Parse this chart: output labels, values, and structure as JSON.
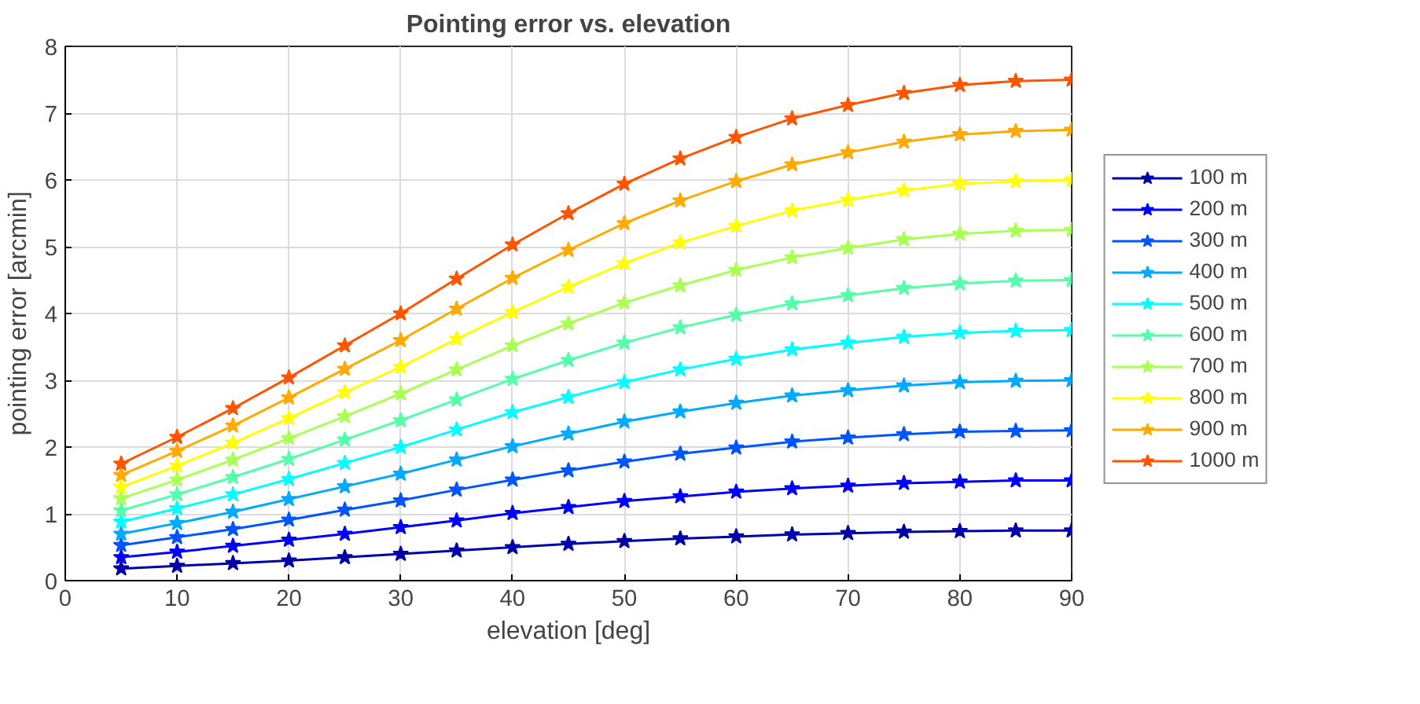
{
  "chart_data": {
    "type": "line",
    "title": "Pointing error vs. elevation",
    "xlabel": "elevation [deg]",
    "ylabel": "pointing error [arcmin]",
    "x": [
      5,
      10,
      15,
      20,
      25,
      30,
      35,
      40,
      45,
      50,
      55,
      60,
      65,
      70,
      75,
      80,
      85,
      90
    ],
    "xlim": [
      0,
      90
    ],
    "xticks": [
      0,
      10,
      20,
      30,
      40,
      50,
      60,
      70,
      80,
      90
    ],
    "ylim": [
      0,
      8
    ],
    "yticks": [
      0,
      1,
      2,
      3,
      4,
      5,
      6,
      7,
      8
    ],
    "grid": true,
    "legend": "right",
    "marker": "star",
    "line_style": "solid",
    "series": [
      {
        "name": "100 m",
        "color": "#0000a8",
        "values": [
          0.18,
          0.22,
          0.26,
          0.3,
          0.35,
          0.4,
          0.45,
          0.5,
          0.55,
          0.59,
          0.63,
          0.66,
          0.69,
          0.71,
          0.73,
          0.74,
          0.75,
          0.75
        ]
      },
      {
        "name": "200 m",
        "color": "#0000ff",
        "values": [
          0.35,
          0.43,
          0.52,
          0.61,
          0.7,
          0.8,
          0.9,
          1.01,
          1.1,
          1.19,
          1.26,
          1.33,
          1.38,
          1.42,
          1.46,
          1.48,
          1.5,
          1.5
        ]
      },
      {
        "name": "300 m",
        "color": "#0055ff",
        "values": [
          0.53,
          0.65,
          0.77,
          0.91,
          1.06,
          1.2,
          1.36,
          1.51,
          1.65,
          1.78,
          1.9,
          1.99,
          2.08,
          2.14,
          2.19,
          2.23,
          2.24,
          2.25
        ]
      },
      {
        "name": "400 m",
        "color": "#00aaff",
        "values": [
          0.7,
          0.86,
          1.03,
          1.22,
          1.41,
          1.6,
          1.81,
          2.01,
          2.2,
          2.38,
          2.53,
          2.66,
          2.77,
          2.85,
          2.92,
          2.97,
          2.99,
          3.0
        ]
      },
      {
        "name": "500 m",
        "color": "#00ffff",
        "values": [
          0.88,
          1.08,
          1.29,
          1.52,
          1.76,
          2.0,
          2.26,
          2.52,
          2.75,
          2.97,
          3.16,
          3.32,
          3.46,
          3.56,
          3.65,
          3.71,
          3.74,
          3.75
        ]
      },
      {
        "name": "600 m",
        "color": "#55ffaa",
        "values": [
          1.05,
          1.29,
          1.55,
          1.82,
          2.11,
          2.4,
          2.71,
          3.02,
          3.3,
          3.56,
          3.79,
          3.98,
          4.15,
          4.27,
          4.38,
          4.45,
          4.49,
          4.5
        ]
      },
      {
        "name": "700 m",
        "color": "#aaff55",
        "values": [
          1.23,
          1.51,
          1.81,
          2.13,
          2.46,
          2.8,
          3.16,
          3.52,
          3.85,
          4.16,
          4.42,
          4.65,
          4.84,
          4.98,
          5.11,
          5.19,
          5.24,
          5.25
        ]
      },
      {
        "name": "800 m",
        "color": "#ffff00",
        "values": [
          1.4,
          1.72,
          2.06,
          2.43,
          2.82,
          3.2,
          3.62,
          4.02,
          4.4,
          4.75,
          5.06,
          5.31,
          5.54,
          5.7,
          5.84,
          5.94,
          5.98,
          6.0
        ]
      },
      {
        "name": "900 m",
        "color": "#ffaa00",
        "values": [
          1.58,
          1.94,
          2.32,
          2.74,
          3.17,
          3.6,
          4.07,
          4.53,
          4.95,
          5.35,
          5.69,
          5.98,
          6.23,
          6.41,
          6.57,
          6.68,
          6.73,
          6.75
        ]
      },
      {
        "name": "1000 m",
        "color": "#ff5500",
        "values": [
          1.75,
          2.15,
          2.58,
          3.04,
          3.52,
          4.0,
          4.52,
          5.03,
          5.5,
          5.94,
          6.32,
          6.64,
          6.92,
          7.12,
          7.3,
          7.42,
          7.48,
          7.5
        ]
      }
    ]
  }
}
